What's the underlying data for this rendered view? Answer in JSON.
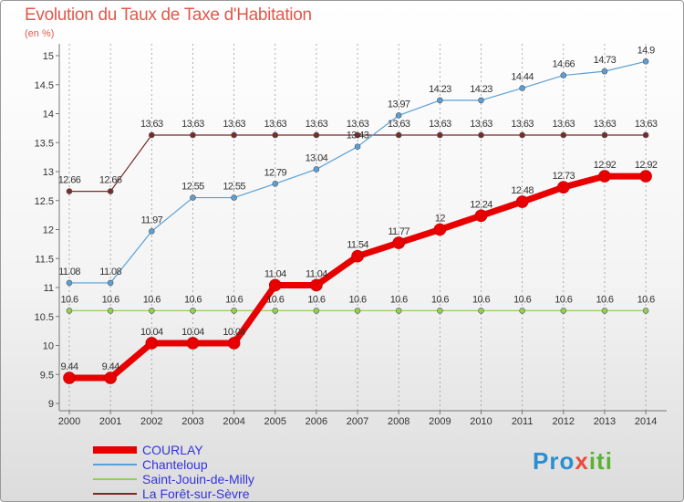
{
  "title": "Evolution du Taux de Taxe d'Habitation",
  "subtitle": "(en %)",
  "logo": {
    "p": "Pro",
    "x": "x",
    "i": "iti"
  },
  "chart_data": {
    "type": "line",
    "title": "Evolution du Taux de Taxe d'Habitation",
    "ylabel": "(en %)",
    "xlabel": "",
    "x": [
      "2000",
      "2001",
      "2002",
      "2003",
      "2004",
      "2005",
      "2006",
      "2007",
      "2008",
      "2009",
      "2010",
      "2011",
      "2012",
      "2013",
      "2014"
    ],
    "ylim": [
      9,
      15
    ],
    "yticks": [
      "9",
      "9.5",
      "10",
      "10.5",
      "11",
      "11.5",
      "12",
      "12.5",
      "13",
      "13.5",
      "14",
      "14.5",
      "15"
    ],
    "legend_position": "bottom-left",
    "series": [
      {
        "name": "COURLAY",
        "color": "#e80000",
        "values": [
          9.44,
          9.44,
          10.04,
          10.04,
          10.04,
          11.04,
          11.04,
          11.54,
          11.77,
          12,
          12.24,
          12.48,
          12.73,
          12.92,
          12.92
        ],
        "labels": [
          "9.44",
          "9.44",
          "10.04",
          "10.04",
          "10.04",
          "11.04",
          "11.04",
          "11.54",
          "11.77",
          "12",
          "12.24",
          "12.48",
          "12.73",
          "12.92",
          "12.92"
        ]
      },
      {
        "name": "Chanteloup",
        "color": "#5a9fd6",
        "values": [
          11.08,
          11.08,
          11.97,
          12.55,
          12.55,
          12.79,
          13.04,
          13.43,
          13.97,
          14.23,
          14.23,
          14.44,
          14.66,
          14.73,
          14.9
        ],
        "labels": [
          "11.08",
          "11.08",
          "11.97",
          "12.55",
          "12.55",
          "12.79",
          "13.04",
          "13.43",
          "13.97",
          "14.23",
          "14.23",
          "14.44",
          "14.66",
          "14.73",
          "14.9"
        ]
      },
      {
        "name": "Saint-Jouin-de-Milly",
        "color": "#8fd15b",
        "values": [
          10.6,
          10.6,
          10.6,
          10.6,
          10.6,
          10.6,
          10.6,
          10.6,
          10.6,
          10.6,
          10.6,
          10.6,
          10.6,
          10.6,
          10.6
        ],
        "labels": [
          "10.6",
          "10.6",
          "10.6",
          "10.6",
          "10.6",
          "10.6",
          "10.6",
          "10.6",
          "10.6",
          "10.6",
          "10.6",
          "10.6",
          "10.6",
          "10.6",
          "10.6"
        ]
      },
      {
        "name": "La Forêt-sur-Sèvre",
        "color": "#7a2a2a",
        "values": [
          12.66,
          12.66,
          13.63,
          13.63,
          13.63,
          13.63,
          13.63,
          13.63,
          13.63,
          13.63,
          13.63,
          13.63,
          13.63,
          13.63,
          13.63
        ],
        "labels": [
          "12.66",
          "12.66",
          "13.63",
          "13.63",
          "13.63",
          "13.63",
          "13.63",
          "13.63",
          "13.63",
          "13.63",
          "13.63",
          "13.63",
          "13.63",
          "13.63",
          "13.63"
        ]
      }
    ]
  }
}
